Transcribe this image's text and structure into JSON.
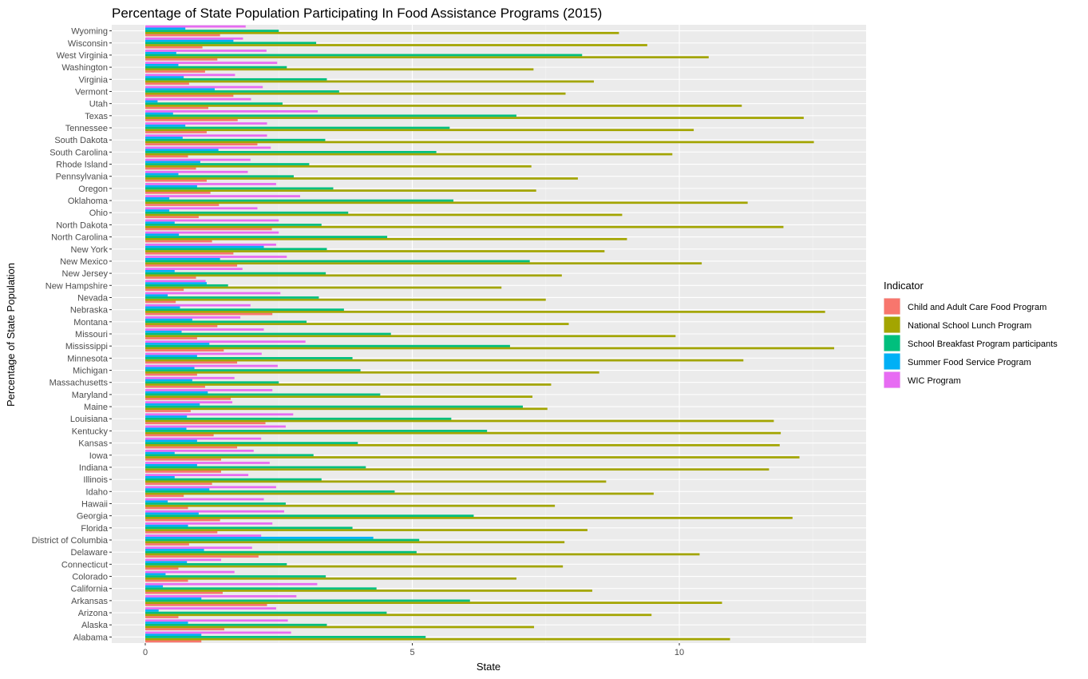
{
  "chart_data": {
    "type": "bar",
    "orientation": "horizontal",
    "title": "Percentage of State Population Participating In Food Assistance Programs (2015)",
    "xlabel": "State",
    "ylabel": "Percentage of State Population",
    "xlim": [
      -0.7,
      13.5
    ],
    "xticks": [
      0,
      5,
      10
    ],
    "grid": true,
    "legend": {
      "title": "Indicator",
      "placement": "right"
    },
    "categories": [
      "Alabama",
      "Alaska",
      "Arizona",
      "Arkansas",
      "California",
      "Colorado",
      "Connecticut",
      "Delaware",
      "District of Columbia",
      "Florida",
      "Georgia",
      "Hawaii",
      "Idaho",
      "Illinois",
      "Indiana",
      "Iowa",
      "Kansas",
      "Kentucky",
      "Louisiana",
      "Maine",
      "Maryland",
      "Massachusetts",
      "Michigan",
      "Minnesota",
      "Mississippi",
      "Missouri",
      "Montana",
      "Nebraska",
      "Nevada",
      "New Hampshire",
      "New Jersey",
      "New Mexico",
      "New York",
      "North Carolina",
      "North Dakota",
      "Ohio",
      "Oklahoma",
      "Oregon",
      "Pennsylvania",
      "Rhode Island",
      "South Carolina",
      "South Dakota",
      "Tennessee",
      "Texas",
      "Utah",
      "Vermont",
      "Virginia",
      "Washington",
      "West Virginia",
      "Wisconsin",
      "Wyoming"
    ],
    "series": [
      {
        "name": "Child and Adult Care Food Program",
        "color": "#F8766D",
        "values": [
          1.05,
          1.48,
          0.62,
          2.28,
          1.45,
          0.8,
          0.62,
          2.12,
          0.82,
          1.35,
          1.4,
          0.8,
          0.72,
          1.25,
          1.42,
          1.42,
          1.72,
          1.28,
          2.25,
          0.85,
          1.6,
          1.12,
          0.97,
          1.72,
          1.47,
          0.97,
          1.35,
          2.38,
          0.57,
          0.72,
          0.95,
          1.72,
          1.65,
          1.25,
          2.37,
          1.0,
          1.38,
          1.22,
          1.15,
          0.95,
          0.8,
          2.1,
          1.15,
          1.73,
          1.18,
          1.65,
          0.82,
          1.12,
          1.35,
          1.07,
          1.4
        ]
      },
      {
        "name": "National School Lunch Program",
        "color": "#A3A500",
        "values": [
          10.95,
          7.28,
          9.48,
          10.8,
          8.37,
          6.95,
          7.82,
          10.38,
          7.85,
          8.28,
          12.12,
          7.67,
          9.52,
          8.63,
          11.68,
          12.25,
          11.88,
          11.9,
          11.77,
          7.53,
          7.25,
          7.6,
          8.5,
          11.2,
          12.9,
          9.93,
          7.93,
          12.73,
          7.5,
          6.67,
          7.8,
          10.42,
          8.6,
          9.02,
          11.95,
          8.93,
          11.28,
          7.32,
          8.1,
          7.23,
          9.87,
          12.52,
          10.27,
          12.33,
          11.17,
          7.87,
          8.4,
          7.27,
          10.55,
          9.4,
          8.87
        ]
      },
      {
        "name": "School Breakfast Program participants",
        "color": "#00BF7D",
        "values": [
          5.25,
          3.4,
          4.52,
          6.08,
          4.33,
          3.38,
          2.65,
          5.08,
          5.13,
          3.88,
          6.15,
          2.63,
          4.67,
          3.3,
          4.13,
          3.15,
          3.98,
          6.4,
          5.73,
          7.07,
          4.4,
          2.5,
          4.03,
          3.88,
          6.83,
          4.6,
          3.02,
          3.72,
          3.25,
          1.55,
          3.38,
          7.2,
          3.4,
          4.53,
          3.3,
          3.8,
          5.77,
          3.52,
          2.78,
          3.07,
          5.45,
          3.37,
          5.7,
          6.95,
          2.57,
          3.63,
          3.4,
          2.65,
          8.18,
          3.2,
          2.5
        ]
      },
      {
        "name": "Summer Food Service Program",
        "color": "#00B0F6",
        "values": [
          1.05,
          0.8,
          0.25,
          1.05,
          0.33,
          0.38,
          0.78,
          1.1,
          4.27,
          0.8,
          1.0,
          0.42,
          1.2,
          0.55,
          0.97,
          0.55,
          0.97,
          0.77,
          0.78,
          1.02,
          1.17,
          0.88,
          0.92,
          0.97,
          1.2,
          0.68,
          0.88,
          0.65,
          0.42,
          1.15,
          0.55,
          1.4,
          2.22,
          0.63,
          0.55,
          0.45,
          0.45,
          0.97,
          0.62,
          1.03,
          1.37,
          0.7,
          0.75,
          0.52,
          0.23,
          1.3,
          0.72,
          0.62,
          0.58,
          1.65,
          0.75
        ]
      },
      {
        "name": "WIC Program",
        "color": "#E76BF3",
        "values": [
          2.73,
          2.67,
          2.45,
          2.83,
          3.22,
          1.67,
          1.42,
          2.0,
          2.17,
          2.38,
          2.6,
          2.22,
          2.45,
          1.93,
          2.33,
          2.03,
          2.17,
          2.63,
          2.77,
          1.63,
          2.38,
          1.67,
          2.48,
          2.18,
          3.0,
          2.22,
          1.78,
          1.97,
          2.53,
          1.13,
          1.82,
          2.65,
          2.45,
          2.5,
          2.5,
          2.1,
          2.9,
          2.45,
          1.92,
          1.97,
          2.35,
          2.28,
          2.28,
          3.23,
          1.98,
          2.2,
          1.68,
          2.47,
          2.27,
          1.83,
          1.88
        ]
      }
    ]
  }
}
